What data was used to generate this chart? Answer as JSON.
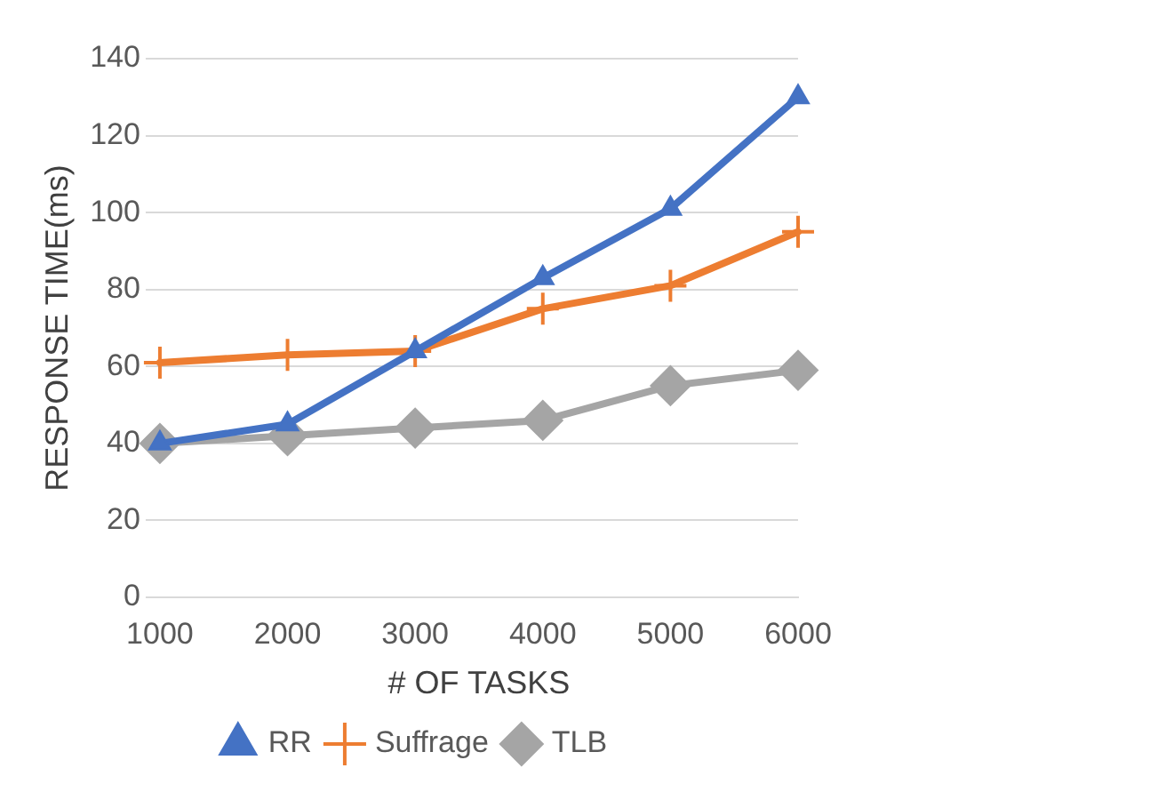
{
  "chart_data": {
    "type": "line",
    "xlabel": "# OF TASKS",
    "ylabel": "RESPONSE TIME(ms)",
    "categories": [
      "1000",
      "2000",
      "3000",
      "4000",
      "5000",
      "6000"
    ],
    "series": [
      {
        "name": "RR",
        "color": "#4472c4",
        "marker": "triangle",
        "values": [
          40,
          45,
          64,
          83,
          101,
          130
        ]
      },
      {
        "name": "Suffrage",
        "color": "#ed7d31",
        "marker": "cross",
        "values": [
          61,
          63,
          64,
          75,
          81,
          95
        ]
      },
      {
        "name": "TLB",
        "color": "#a5a5a5",
        "marker": "diamond",
        "values": [
          40,
          42,
          44,
          46,
          55,
          59
        ]
      }
    ],
    "ylim": [
      0,
      140
    ],
    "yticks": [
      0,
      20,
      40,
      60,
      80,
      100,
      120,
      140
    ],
    "grid": "y",
    "legend": "bottom"
  }
}
